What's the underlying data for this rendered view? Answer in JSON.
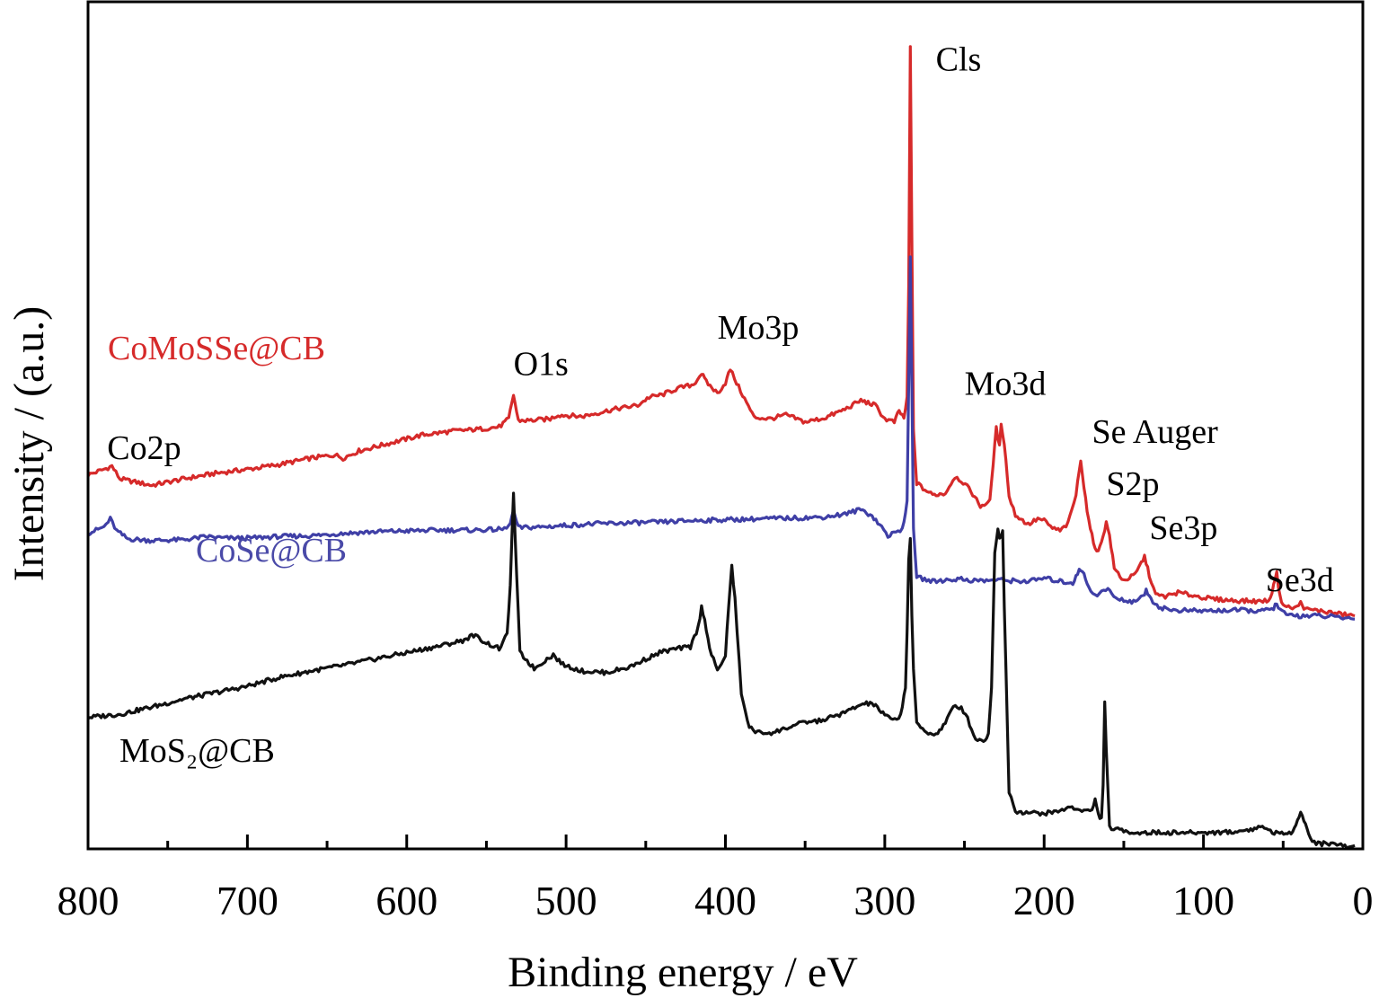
{
  "chart_data": {
    "type": "line",
    "title": "",
    "xlabel": "Binding energy / eV",
    "ylabel": "Intensity / (a.u.)",
    "xlim": [
      800,
      0
    ],
    "ylim": [
      0,
      100
    ],
    "x_ticks": [
      800,
      700,
      600,
      500,
      400,
      300,
      200,
      100,
      0
    ],
    "x_tick_labels": [
      "800",
      "700",
      "600",
      "500",
      "400",
      "300",
      "200",
      "100",
      "0"
    ],
    "series": [
      {
        "name": "CoMoSSe@CB",
        "color": "#d62a2a",
        "label_text": "CoMoSSe@CB",
        "points": [
          [
            800,
            46.5
          ],
          [
            790,
            47.2
          ],
          [
            785,
            47.6
          ],
          [
            780,
            46.0
          ],
          [
            760,
            45.2
          ],
          [
            740,
            46.0
          ],
          [
            720,
            46.7
          ],
          [
            700,
            47.2
          ],
          [
            680,
            47.8
          ],
          [
            660,
            48.6
          ],
          [
            645,
            49.0
          ],
          [
            640,
            48.6
          ],
          [
            630,
            49.5
          ],
          [
            610,
            50.5
          ],
          [
            590,
            51.5
          ],
          [
            570,
            52.0
          ],
          [
            555,
            52.2
          ],
          [
            542,
            52.5
          ],
          [
            536,
            53.5
          ],
          [
            533,
            56.5
          ],
          [
            530,
            53.3
          ],
          [
            522,
            53.3
          ],
          [
            510,
            53.5
          ],
          [
            505,
            54.0
          ],
          [
            490,
            53.8
          ],
          [
            470,
            54.7
          ],
          [
            455,
            55.2
          ],
          [
            448,
            56.2
          ],
          [
            440,
            56.5
          ],
          [
            430,
            57.3
          ],
          [
            420,
            57.8
          ],
          [
            415,
            59.2
          ],
          [
            412,
            58.1
          ],
          [
            405,
            56.7
          ],
          [
            400,
            58.0
          ],
          [
            397,
            59.7
          ],
          [
            393,
            58.0
          ],
          [
            388,
            56.0
          ],
          [
            382,
            53.7
          ],
          [
            372,
            53.5
          ],
          [
            362,
            54.0
          ],
          [
            350,
            53.1
          ],
          [
            338,
            53.6
          ],
          [
            325,
            54.7
          ],
          [
            315,
            55.8
          ],
          [
            306,
            55.2
          ],
          [
            300,
            53.5
          ],
          [
            294,
            53.1
          ],
          [
            291,
            54.5
          ],
          [
            288,
            53.6
          ],
          [
            286,
            56.0
          ],
          [
            285,
            70.0
          ],
          [
            284,
            100.0
          ],
          [
            283,
            76.0
          ],
          [
            282,
            52.0
          ],
          [
            280,
            45.5
          ],
          [
            276,
            44.8
          ],
          [
            270,
            44.0
          ],
          [
            262,
            44.2
          ],
          [
            256,
            46.3
          ],
          [
            252,
            45.8
          ],
          [
            246,
            44.5
          ],
          [
            240,
            42.6
          ],
          [
            234,
            43.2
          ],
          [
            232,
            48.0
          ],
          [
            230,
            52.3
          ],
          [
            228,
            50.0
          ],
          [
            227,
            53.0
          ],
          [
            225,
            50.5
          ],
          [
            222,
            43.8
          ],
          [
            218,
            41.5
          ],
          [
            210,
            40.3
          ],
          [
            204,
            41.0
          ],
          [
            200,
            40.8
          ],
          [
            196,
            40.0
          ],
          [
            190,
            39.5
          ],
          [
            185,
            40.4
          ],
          [
            180,
            44.0
          ],
          [
            177,
            48.5
          ],
          [
            175,
            45.0
          ],
          [
            172,
            40.7
          ],
          [
            169,
            38.0
          ],
          [
            166,
            36.8
          ],
          [
            163,
            39.0
          ],
          [
            161,
            40.5
          ],
          [
            159,
            39.0
          ],
          [
            156,
            34.8
          ],
          [
            150,
            33.3
          ],
          [
            143,
            34.0
          ],
          [
            139,
            35.5
          ],
          [
            137,
            36.3
          ],
          [
            134,
            34.0
          ],
          [
            130,
            31.5
          ],
          [
            124,
            31.3
          ],
          [
            116,
            31.8
          ],
          [
            108,
            31.5
          ],
          [
            95,
            31.0
          ],
          [
            80,
            30.8
          ],
          [
            65,
            30.7
          ],
          [
            58,
            30.9
          ],
          [
            56,
            33.0
          ],
          [
            54,
            34.2
          ],
          [
            52,
            31.2
          ],
          [
            49,
            30.1
          ],
          [
            43,
            29.8
          ],
          [
            39,
            30.5
          ],
          [
            36,
            29.7
          ],
          [
            30,
            29.6
          ],
          [
            20,
            29.3
          ],
          [
            10,
            29.0
          ],
          [
            5,
            28.9
          ]
        ]
      },
      {
        "name": "CoSe@CB",
        "color": "#3f3fa6",
        "label_text": "CoSe@CB",
        "points": [
          [
            800,
            39.2
          ],
          [
            790,
            40.0
          ],
          [
            786,
            41.0
          ],
          [
            782,
            39.5
          ],
          [
            775,
            38.5
          ],
          [
            760,
            38.3
          ],
          [
            740,
            38.4
          ],
          [
            725,
            38.8
          ],
          [
            715,
            38.6
          ],
          [
            700,
            38.6
          ],
          [
            680,
            38.8
          ],
          [
            660,
            38.9
          ],
          [
            640,
            39.2
          ],
          [
            620,
            39.4
          ],
          [
            600,
            39.5
          ],
          [
            580,
            39.6
          ],
          [
            560,
            39.6
          ],
          [
            540,
            39.7
          ],
          [
            536,
            40.0
          ],
          [
            533,
            42.0
          ],
          [
            530,
            39.9
          ],
          [
            515,
            40.0
          ],
          [
            500,
            40.2
          ],
          [
            480,
            40.4
          ],
          [
            460,
            40.5
          ],
          [
            440,
            40.6
          ],
          [
            420,
            40.8
          ],
          [
            400,
            40.9
          ],
          [
            380,
            41.0
          ],
          [
            360,
            41.1
          ],
          [
            340,
            41.2
          ],
          [
            325,
            41.6
          ],
          [
            315,
            42.2
          ],
          [
            308,
            41.4
          ],
          [
            302,
            40.0
          ],
          [
            298,
            38.9
          ],
          [
            293,
            39.3
          ],
          [
            289,
            39.8
          ],
          [
            286,
            43.0
          ],
          [
            285,
            58.0
          ],
          [
            284,
            73.5
          ],
          [
            283,
            58.0
          ],
          [
            282,
            40.0
          ],
          [
            280,
            33.7
          ],
          [
            270,
            33.2
          ],
          [
            260,
            33.4
          ],
          [
            252,
            33.5
          ],
          [
            245,
            33.3
          ],
          [
            235,
            33.3
          ],
          [
            230,
            33.4
          ],
          [
            222,
            33.3
          ],
          [
            210,
            33.2
          ],
          [
            200,
            33.6
          ],
          [
            190,
            33.2
          ],
          [
            182,
            33.0
          ],
          [
            179,
            34.3
          ],
          [
            177,
            34.7
          ],
          [
            175,
            34.0
          ],
          [
            172,
            32.5
          ],
          [
            168,
            31.5
          ],
          [
            164,
            31.8
          ],
          [
            160,
            32.3
          ],
          [
            155,
            31.0
          ],
          [
            145,
            30.7
          ],
          [
            138,
            31.2
          ],
          [
            136,
            32.2
          ],
          [
            133,
            31.0
          ],
          [
            128,
            30.0
          ],
          [
            120,
            29.6
          ],
          [
            100,
            29.5
          ],
          [
            80,
            29.6
          ],
          [
            62,
            29.5
          ],
          [
            56,
            29.9
          ],
          [
            54,
            30.4
          ],
          [
            52,
            29.6
          ],
          [
            48,
            29.0
          ],
          [
            40,
            28.9
          ],
          [
            30,
            28.9
          ],
          [
            20,
            28.8
          ],
          [
            10,
            28.6
          ],
          [
            5,
            28.5
          ]
        ]
      },
      {
        "name": "MoS₂@CB",
        "color": "#111111",
        "label_text": "MoS₂@CB",
        "points": [
          [
            800,
            16.2
          ],
          [
            780,
            16.6
          ],
          [
            760,
            17.5
          ],
          [
            740,
            18.5
          ],
          [
            720,
            19.3
          ],
          [
            700,
            20.1
          ],
          [
            680,
            21.2
          ],
          [
            660,
            22.0
          ],
          [
            640,
            22.7
          ],
          [
            620,
            23.5
          ],
          [
            600,
            24.3
          ],
          [
            580,
            25.1
          ],
          [
            565,
            25.8
          ],
          [
            558,
            26.5
          ],
          [
            550,
            25.5
          ],
          [
            542,
            24.8
          ],
          [
            537,
            26.5
          ],
          [
            535,
            33.0
          ],
          [
            533,
            44.0
          ],
          [
            531,
            34.0
          ],
          [
            529,
            24.3
          ],
          [
            520,
            22.3
          ],
          [
            512,
            23.5
          ],
          [
            508,
            24.0
          ],
          [
            502,
            22.8
          ],
          [
            490,
            22.0
          ],
          [
            475,
            21.8
          ],
          [
            460,
            22.5
          ],
          [
            450,
            23.5
          ],
          [
            440,
            24.4
          ],
          [
            430,
            24.8
          ],
          [
            422,
            25.0
          ],
          [
            417,
            27.5
          ],
          [
            415,
            30.0
          ],
          [
            413,
            28.5
          ],
          [
            410,
            24.8
          ],
          [
            405,
            22.0
          ],
          [
            400,
            24.0
          ],
          [
            398,
            30.0
          ],
          [
            396,
            35.0
          ],
          [
            394,
            31.0
          ],
          [
            390,
            19.0
          ],
          [
            385,
            15.0
          ],
          [
            380,
            14.3
          ],
          [
            370,
            14.3
          ],
          [
            360,
            15.0
          ],
          [
            350,
            15.6
          ],
          [
            340,
            15.8
          ],
          [
            325,
            16.8
          ],
          [
            315,
            17.8
          ],
          [
            308,
            18.0
          ],
          [
            300,
            16.5
          ],
          [
            295,
            15.8
          ],
          [
            290,
            16.5
          ],
          [
            287,
            20.0
          ],
          [
            286,
            27.0
          ],
          [
            285,
            36.0
          ],
          [
            284,
            38.5
          ],
          [
            283,
            29.0
          ],
          [
            282,
            22.0
          ],
          [
            280,
            15.5
          ],
          [
            275,
            14.5
          ],
          [
            268,
            14.0
          ],
          [
            262,
            15.5
          ],
          [
            257,
            17.5
          ],
          [
            252,
            17.5
          ],
          [
            248,
            16.0
          ],
          [
            243,
            13.5
          ],
          [
            238,
            13.3
          ],
          [
            235,
            14.0
          ],
          [
            233,
            20.0
          ],
          [
            231,
            37.0
          ],
          [
            229,
            39.5
          ],
          [
            228,
            38.5
          ],
          [
            226,
            39.5
          ],
          [
            225,
            30.0
          ],
          [
            222,
            7.0
          ],
          [
            218,
            4.5
          ],
          [
            210,
            4.3
          ],
          [
            200,
            4.2
          ],
          [
            190,
            4.5
          ],
          [
            185,
            5.0
          ],
          [
            175,
            4.6
          ],
          [
            170,
            4.5
          ],
          [
            168,
            6.0
          ],
          [
            166,
            4.0
          ],
          [
            164,
            3.5
          ],
          [
            163,
            8.0
          ],
          [
            162,
            18.0
          ],
          [
            161,
            12.0
          ],
          [
            159,
            2.5
          ],
          [
            155,
            2.2
          ],
          [
            150,
            2.0
          ],
          [
            140,
            1.8
          ],
          [
            120,
            1.8
          ],
          [
            100,
            1.8
          ],
          [
            80,
            1.9
          ],
          [
            68,
            2.3
          ],
          [
            63,
            2.6
          ],
          [
            58,
            2.0
          ],
          [
            52,
            1.6
          ],
          [
            45,
            1.8
          ],
          [
            42,
            3.0
          ],
          [
            39,
            4.2
          ],
          [
            36,
            3.0
          ],
          [
            33,
            1.0
          ],
          [
            28,
            0.4
          ],
          [
            20,
            0.5
          ],
          [
            15,
            0.3
          ],
          [
            10,
            0.0
          ],
          [
            5,
            0.2
          ]
        ]
      }
    ],
    "annotations": [
      {
        "text": "Co2p",
        "x": 788,
        "y": 48.5
      },
      {
        "text": "O1s",
        "x": 533,
        "y": 59
      },
      {
        "text": "Mo3p",
        "x": 405,
        "y": 63.5
      },
      {
        "text": "Cls",
        "x": 268,
        "y": 97
      },
      {
        "text": "Mo3d",
        "x": 250,
        "y": 56.5
      },
      {
        "text": "Se Auger",
        "x": 170,
        "y": 50.5
      },
      {
        "text": "S2p",
        "x": 161,
        "y": 44
      },
      {
        "text": "Se3p",
        "x": 134,
        "y": 38.5
      },
      {
        "text": "Se3d",
        "x": 61,
        "y": 32
      }
    ]
  }
}
